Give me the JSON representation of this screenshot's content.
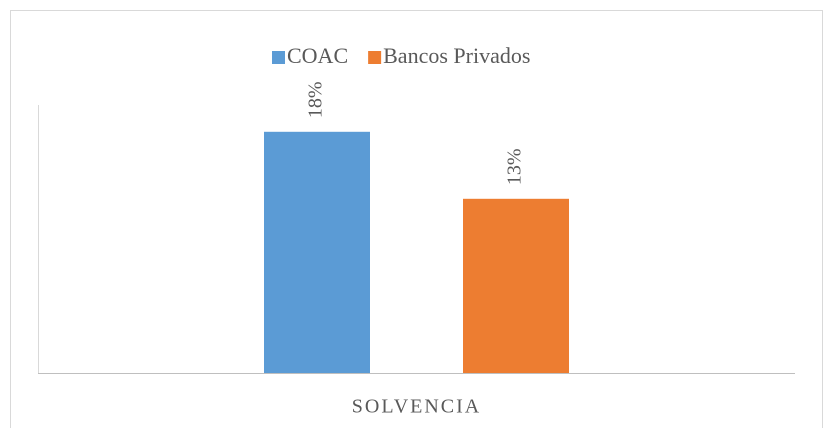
{
  "chart_data": {
    "type": "bar",
    "categories": [
      "SOLVENCIA"
    ],
    "series": [
      {
        "name": "COAC",
        "color": "#5b9bd5",
        "values": [
          18
        ],
        "value_labels": [
          "18%"
        ]
      },
      {
        "name": "Bancos Privados",
        "color": "#ed7d31",
        "values": [
          13
        ],
        "value_labels": [
          "13%"
        ]
      }
    ],
    "ylim": [
      0,
      20
    ],
    "legend": "top"
  }
}
